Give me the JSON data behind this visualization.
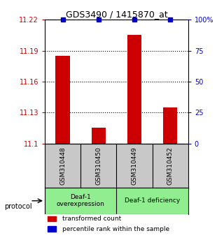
{
  "title": "GDS3490 / 1415870_at",
  "samples": [
    "GSM310448",
    "GSM310450",
    "GSM310449",
    "GSM310452"
  ],
  "red_values": [
    11.185,
    11.115,
    11.205,
    11.135
  ],
  "blue_values": [
    100,
    100,
    100,
    100
  ],
  "ylim_left": [
    11.1,
    11.22
  ],
  "ylim_right": [
    0,
    100
  ],
  "yticks_left": [
    11.1,
    11.13,
    11.16,
    11.19,
    11.22
  ],
  "ytick_labels_left": [
    "11.1",
    "11.13",
    "11.16",
    "11.19",
    "11.22"
  ],
  "yticks_right": [
    0,
    25,
    50,
    75,
    100
  ],
  "ytick_labels_right": [
    "0",
    "25",
    "50",
    "75",
    "100%"
  ],
  "hlines": [
    11.13,
    11.16,
    11.19
  ],
  "groups": [
    {
      "label": "Deaf-1\noverexpression",
      "indices": [
        0,
        1
      ],
      "color": "#90EE90"
    },
    {
      "label": "Deaf-1 deficiency",
      "indices": [
        2,
        3
      ],
      "color": "#90EE90"
    }
  ],
  "bar_color": "#CC0000",
  "blue_color": "#0000CC",
  "background_color": "#ffffff",
  "sample_box_color": "#C8C8C8",
  "legend_red_label": "transformed count",
  "legend_blue_label": "percentile rank within the sample",
  "protocol_label": "protocol"
}
